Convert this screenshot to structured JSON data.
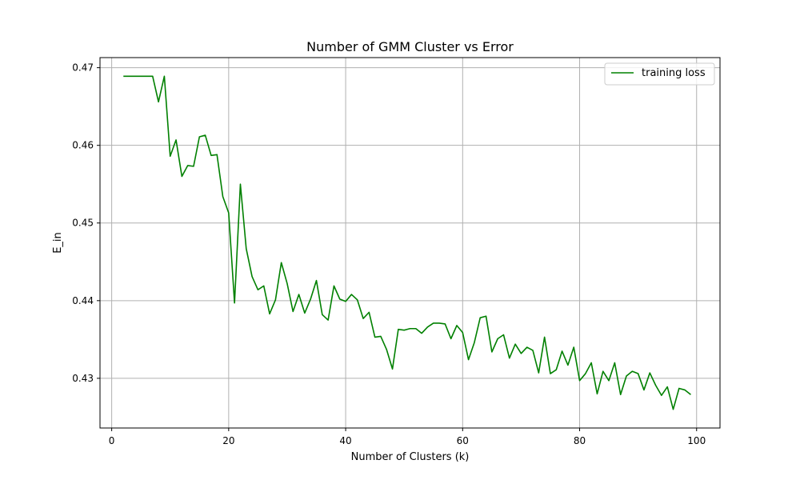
{
  "chart_data": {
    "type": "line",
    "title": "Number of GMM Cluster vs Error",
    "xlabel": "Number of Clusters (k)",
    "ylabel": "E_in",
    "xlim": [
      -2,
      104
    ],
    "ylim": [
      0.4236,
      0.4713
    ],
    "xticks": [
      0,
      20,
      40,
      60,
      80,
      100
    ],
    "yticks": [
      0.43,
      0.44,
      0.45,
      0.46,
      0.47
    ],
    "xtick_labels": [
      "0",
      "20",
      "40",
      "60",
      "80",
      "100"
    ],
    "ytick_labels": [
      "0.43",
      "0.44",
      "0.45",
      "0.46",
      "0.47"
    ],
    "grid": true,
    "legend_position": "top-right",
    "series": [
      {
        "name": "training loss",
        "color": "#008000",
        "x": [
          2,
          3,
          4,
          5,
          6,
          7,
          8,
          9,
          10,
          11,
          12,
          13,
          14,
          15,
          16,
          17,
          18,
          19,
          20,
          21,
          22,
          23,
          24,
          25,
          26,
          27,
          28,
          29,
          30,
          31,
          32,
          33,
          34,
          35,
          36,
          37,
          38,
          39,
          40,
          41,
          42,
          43,
          44,
          45,
          46,
          47,
          48,
          49,
          50,
          51,
          52,
          53,
          54,
          55,
          56,
          57,
          58,
          59,
          60,
          61,
          62,
          63,
          64,
          65,
          66,
          67,
          68,
          69,
          70,
          71,
          72,
          73,
          74,
          75,
          76,
          77,
          78,
          79,
          80,
          81,
          82,
          83,
          84,
          85,
          86,
          87,
          88,
          89,
          90,
          91,
          92,
          93,
          94,
          95,
          96,
          97,
          98,
          99
        ],
        "values": [
          0.4689,
          0.4689,
          0.4689,
          0.4689,
          0.4689,
          0.4689,
          0.4656,
          0.4689,
          0.4586,
          0.4607,
          0.456,
          0.4574,
          0.4573,
          0.4611,
          0.4613,
          0.4587,
          0.4588,
          0.4534,
          0.4513,
          0.4397,
          0.455,
          0.4467,
          0.4431,
          0.4414,
          0.4419,
          0.4383,
          0.4401,
          0.4449,
          0.4422,
          0.4386,
          0.4408,
          0.4384,
          0.4402,
          0.4426,
          0.4382,
          0.4375,
          0.4419,
          0.4402,
          0.4399,
          0.4408,
          0.4401,
          0.4377,
          0.4385,
          0.4353,
          0.4354,
          0.4337,
          0.4312,
          0.4363,
          0.4362,
          0.4364,
          0.4364,
          0.4358,
          0.4366,
          0.4371,
          0.4371,
          0.437,
          0.4351,
          0.4368,
          0.4359,
          0.4324,
          0.4346,
          0.4378,
          0.438,
          0.4334,
          0.4351,
          0.4356,
          0.4326,
          0.4344,
          0.4332,
          0.434,
          0.4336,
          0.4307,
          0.4353,
          0.4306,
          0.4311,
          0.4335,
          0.4317,
          0.434,
          0.4297,
          0.4306,
          0.432,
          0.428,
          0.4309,
          0.4297,
          0.432,
          0.4279,
          0.4303,
          0.4309,
          0.4306,
          0.4285,
          0.4307,
          0.4291,
          0.4278,
          0.4289,
          0.426,
          0.4287,
          0.4285,
          0.4279
        ]
      }
    ]
  }
}
